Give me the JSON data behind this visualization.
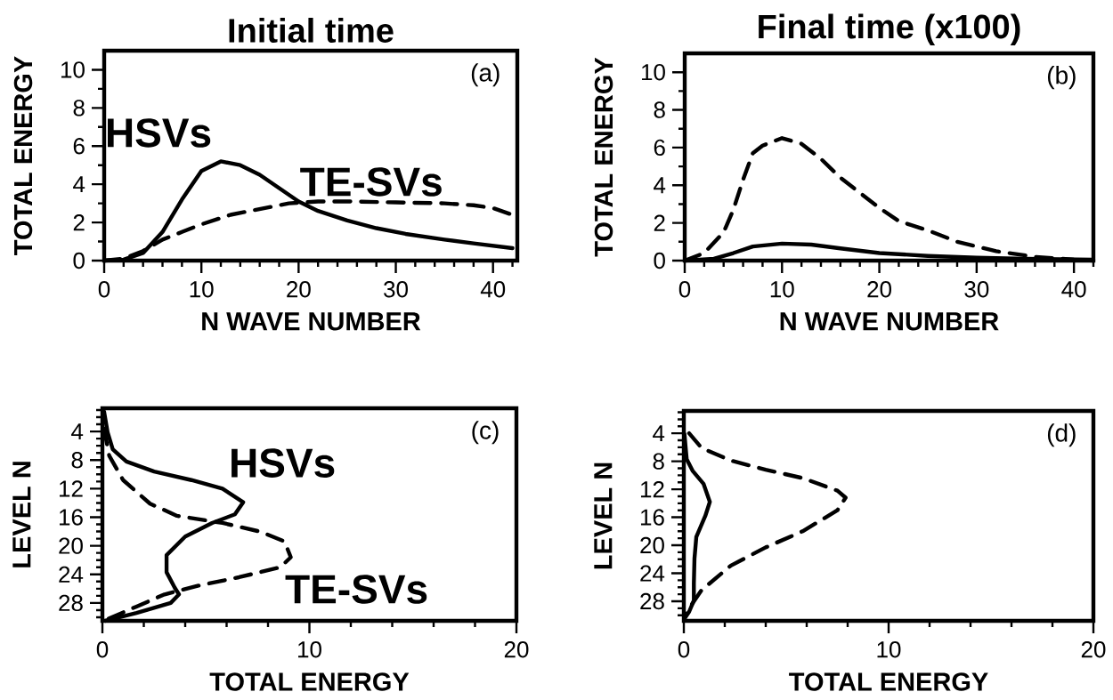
{
  "chart_data": [
    {
      "type": "line",
      "title": "Initial time",
      "xlabel": "N WAVE NUMBER",
      "ylabel": "TOTAL ENERGY",
      "annotations": [
        "(a)"
      ],
      "xlim": [
        0,
        42.5
      ],
      "ylim": [
        0,
        11
      ],
      "xticks": [
        0,
        10,
        20,
        30,
        40,
        {
          "value": 2,
          "label": null
        },
        {
          "value": 4,
          "label": null
        },
        {
          "value": 6,
          "label": null
        },
        {
          "value": 8,
          "label": null
        },
        {
          "value": 12,
          "label": null
        },
        {
          "value": 14,
          "label": null
        },
        {
          "value": 16,
          "label": null
        },
        {
          "value": 18,
          "label": null
        },
        {
          "value": 22,
          "label": null
        },
        {
          "value": 24,
          "label": null
        },
        {
          "value": 26,
          "label": null
        },
        {
          "value": 28,
          "label": null
        },
        {
          "value": 32,
          "label": null
        },
        {
          "value": 34,
          "label": null
        },
        {
          "value": 36,
          "label": null
        },
        {
          "value": 38,
          "label": null
        },
        {
          "value": 42,
          "label": null
        }
      ],
      "yticks": [
        0,
        2,
        4,
        6,
        8,
        10,
        {
          "value": 1,
          "label": null
        },
        {
          "value": 3,
          "label": null
        },
        {
          "value": 5,
          "label": null
        },
        {
          "value": 7,
          "label": null
        },
        {
          "value": 9,
          "label": null
        }
      ],
      "series": [
        {
          "name": "HSVs",
          "color": "#000000",
          "line_style": "solid",
          "x": [
            0,
            2,
            4,
            6,
            8,
            10,
            12,
            14,
            16,
            18,
            20,
            22,
            25,
            28,
            31,
            35,
            38,
            42
          ],
          "values": [
            0,
            0.05,
            0.4,
            1.5,
            3.2,
            4.7,
            5.2,
            5.0,
            4.5,
            3.8,
            3.1,
            2.6,
            2.1,
            1.7,
            1.4,
            1.1,
            0.9,
            0.65
          ]
        },
        {
          "name": "TE-SVs",
          "color": "#000000",
          "line_style": "dashed",
          "x": [
            0,
            2,
            4,
            6,
            8,
            10,
            13,
            16,
            19,
            22,
            25,
            30,
            35,
            38,
            40,
            42
          ],
          "values": [
            0,
            0.1,
            0.5,
            1.1,
            1.5,
            1.9,
            2.4,
            2.7,
            3.0,
            3.1,
            3.1,
            3.05,
            3.0,
            2.9,
            2.75,
            2.4
          ]
        }
      ]
    },
    {
      "type": "line",
      "title": "Final time (x100)",
      "xlabel": "N WAVE NUMBER",
      "ylabel": "TOTAL ENERGY",
      "annotations": [
        "(b)"
      ],
      "xlim": [
        0,
        42
      ],
      "ylim": [
        0,
        11
      ],
      "xticks": [
        0,
        10,
        20,
        30,
        40,
        {
          "value": 2,
          "label": null
        },
        {
          "value": 4,
          "label": null
        },
        {
          "value": 6,
          "label": null
        },
        {
          "value": 8,
          "label": null
        },
        {
          "value": 12,
          "label": null
        },
        {
          "value": 14,
          "label": null
        },
        {
          "value": 16,
          "label": null
        },
        {
          "value": 18,
          "label": null
        },
        {
          "value": 22,
          "label": null
        },
        {
          "value": 24,
          "label": null
        },
        {
          "value": 26,
          "label": null
        },
        {
          "value": 28,
          "label": null
        },
        {
          "value": 32,
          "label": null
        },
        {
          "value": 34,
          "label": null
        },
        {
          "value": 36,
          "label": null
        },
        {
          "value": 38,
          "label": null
        },
        {
          "value": 42,
          "label": null
        }
      ],
      "yticks": [
        0,
        2,
        4,
        6,
        8,
        10,
        {
          "value": 1,
          "label": null
        },
        {
          "value": 3,
          "label": null
        },
        {
          "value": 5,
          "label": null
        },
        {
          "value": 7,
          "label": null
        },
        {
          "value": 9,
          "label": null
        }
      ],
      "series": [
        {
          "color": "#000000",
          "line_style": "solid",
          "x": [
            0,
            3,
            5,
            7,
            10,
            13,
            16,
            20,
            25,
            30,
            35,
            42
          ],
          "values": [
            0,
            0.1,
            0.4,
            0.75,
            0.9,
            0.85,
            0.65,
            0.4,
            0.25,
            0.15,
            0.1,
            0.05
          ]
        },
        {
          "color": "#000000",
          "line_style": "dashed",
          "x": [
            0,
            2,
            4,
            5,
            6,
            7,
            8,
            10,
            12,
            14,
            16,
            18,
            20,
            22,
            25,
            28,
            32,
            36,
            40,
            42
          ],
          "values": [
            0,
            0.4,
            1.5,
            2.7,
            4.3,
            5.7,
            6.1,
            6.5,
            6.2,
            5.4,
            4.4,
            3.6,
            2.8,
            2.1,
            1.6,
            1.0,
            0.5,
            0.2,
            0.05,
            0
          ]
        }
      ]
    },
    {
      "type": "line",
      "xlabel": "TOTAL ENERGY",
      "ylabel": "LEVEL N",
      "annotations": [
        "(c)"
      ],
      "xlim": [
        0,
        20
      ],
      "ylim": [
        30.5,
        0.75
      ],
      "xticks": [
        0,
        10,
        20,
        {
          "value": 2,
          "label": null
        },
        {
          "value": 4,
          "label": null
        },
        {
          "value": 6,
          "label": null
        },
        {
          "value": 8,
          "label": null
        },
        {
          "value": 12,
          "label": null
        },
        {
          "value": 14,
          "label": null
        },
        {
          "value": 16,
          "label": null
        },
        {
          "value": 18,
          "label": null
        }
      ],
      "yticks": [
        4,
        8,
        12,
        16,
        20,
        24,
        28,
        {
          "value": 1,
          "label": null
        },
        {
          "value": 2,
          "label": null
        },
        {
          "value": 3,
          "label": null
        },
        {
          "value": 5,
          "label": null
        },
        {
          "value": 6,
          "label": null
        },
        {
          "value": 7,
          "label": null
        },
        {
          "value": 9,
          "label": null
        },
        {
          "value": 10,
          "label": null
        },
        {
          "value": 11,
          "label": null
        },
        {
          "value": 13,
          "label": null
        },
        {
          "value": 14,
          "label": null
        },
        {
          "value": 15,
          "label": null
        },
        {
          "value": 17,
          "label": null
        },
        {
          "value": 18,
          "label": null
        },
        {
          "value": 19,
          "label": null
        },
        {
          "value": 21,
          "label": null
        },
        {
          "value": 22,
          "label": null
        },
        {
          "value": 23,
          "label": null
        },
        {
          "value": 25,
          "label": null
        },
        {
          "value": 26,
          "label": null
        },
        {
          "value": 27,
          "label": null
        },
        {
          "value": 29,
          "label": null
        },
        {
          "value": 30,
          "label": null
        }
      ],
      "series": [
        {
          "name": "HSVs",
          "color": "#000000",
          "line_style": "solid",
          "x": [
            0.08,
            0.25,
            0.5,
            1.16,
            2.5,
            4.3,
            5.8,
            6.8,
            6.4,
            5.3,
            4.0,
            3.1,
            3.1,
            3.5,
            3.7,
            3.3,
            1.65,
            0.15
          ],
          "values": [
            1.2,
            4.1,
            6.5,
            8.2,
            9.6,
            10.8,
            12.0,
            13.9,
            15.6,
            16.8,
            18.7,
            21.3,
            23.7,
            25.9,
            26.8,
            28.0,
            29.4,
            30.5
          ]
        },
        {
          "name": "TE-SVs",
          "color": "#000000",
          "line_style": "dashed",
          "x": [
            0.08,
            0.33,
            1.0,
            2.3,
            3.6,
            5.8,
            7.6,
            8.8,
            9.1,
            8.6,
            6.6,
            4.6,
            3.0,
            1.65,
            0.15
          ],
          "values": [
            3.6,
            7.4,
            10.8,
            14.1,
            15.8,
            16.8,
            18.0,
            19.4,
            21.6,
            23.0,
            24.4,
            25.6,
            26.8,
            28.5,
            30.4
          ]
        }
      ]
    },
    {
      "type": "line",
      "xlabel": "TOTAL ENERGY",
      "ylabel": "LEVEL N",
      "annotations": [
        "(d)"
      ],
      "xlim": [
        0,
        20
      ],
      "ylim": [
        30.8,
        0.8
      ],
      "xticks": [
        0,
        10,
        20,
        {
          "value": 2,
          "label": null
        },
        {
          "value": 4,
          "label": null
        },
        {
          "value": 6,
          "label": null
        },
        {
          "value": 8,
          "label": null
        },
        {
          "value": 12,
          "label": null
        },
        {
          "value": 14,
          "label": null
        },
        {
          "value": 16,
          "label": null
        },
        {
          "value": 18,
          "label": null
        }
      ],
      "yticks": [
        4,
        8,
        12,
        16,
        20,
        24,
        28,
        {
          "value": 1,
          "label": null
        },
        {
          "value": 2,
          "label": null
        },
        {
          "value": 3,
          "label": null
        },
        {
          "value": 5,
          "label": null
        },
        {
          "value": 6,
          "label": null
        },
        {
          "value": 7,
          "label": null
        },
        {
          "value": 9,
          "label": null
        },
        {
          "value": 10,
          "label": null
        },
        {
          "value": 11,
          "label": null
        },
        {
          "value": 13,
          "label": null
        },
        {
          "value": 14,
          "label": null
        },
        {
          "value": 15,
          "label": null
        },
        {
          "value": 17,
          "label": null
        },
        {
          "value": 18,
          "label": null
        },
        {
          "value": 19,
          "label": null
        },
        {
          "value": 21,
          "label": null
        },
        {
          "value": 22,
          "label": null
        },
        {
          "value": 23,
          "label": null
        },
        {
          "value": 25,
          "label": null
        },
        {
          "value": 26,
          "label": null
        },
        {
          "value": 27,
          "label": null
        },
        {
          "value": 29,
          "label": null
        },
        {
          "value": 30,
          "label": null
        }
      ],
      "series": [
        {
          "color": "#000000",
          "line_style": "solid",
          "x": [
            0.03,
            0.14,
            0.44,
            0.96,
            1.27,
            1.05,
            0.61,
            0.52,
            0.49,
            0.49,
            0.26,
            0.03
          ],
          "values": [
            4.1,
            7.7,
            9.4,
            11.2,
            13.8,
            15.8,
            18.8,
            21.9,
            25.4,
            27.9,
            29.5,
            30.5
          ]
        },
        {
          "color": "#000000",
          "line_style": "dashed",
          "x": [
            0.26,
            0.87,
            2.3,
            4.0,
            5.8,
            7.5,
            7.9,
            7.5,
            5.8,
            4.0,
            2.3,
            0.87,
            0.26,
            0.03
          ],
          "values": [
            4.0,
            6.1,
            7.9,
            9.2,
            10.4,
            12.2,
            13.2,
            15.0,
            18.0,
            20.3,
            22.9,
            26.4,
            29.0,
            30.5
          ]
        }
      ]
    }
  ]
}
